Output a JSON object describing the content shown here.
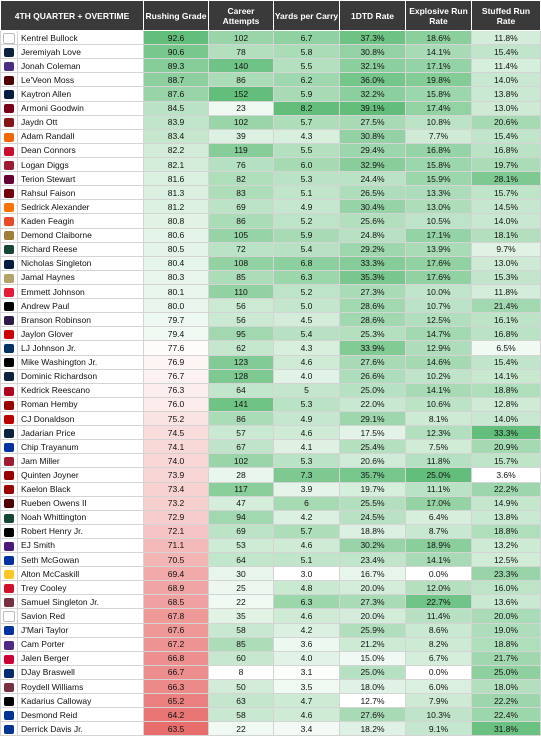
{
  "header": {
    "title": "4TH QUARTER + OVERTIME",
    "columns": [
      "Rushing Grade",
      "Career Attempts",
      "Yards per Carry",
      "1DTD Rate",
      "Explosive Run Rate",
      "Stuffed Run Rate"
    ]
  },
  "rows": [
    {
      "name": "Kentrel Bullock",
      "grade": "92.6",
      "att": "102",
      "ypc": "6.7",
      "tdr": "37.3%",
      "exp": "18.6%",
      "stuff": "11.8%",
      "logo": "#ffffff"
    },
    {
      "name": "Jeremiyah Love",
      "grade": "90.6",
      "att": "78",
      "ypc": "5.8",
      "tdr": "30.8%",
      "exp": "14.1%",
      "stuff": "15.4%",
      "logo": "#0c2340"
    },
    {
      "name": "Jonah Coleman",
      "grade": "89.3",
      "att": "140",
      "ypc": "5.5",
      "tdr": "32.1%",
      "exp": "17.1%",
      "stuff": "11.4%",
      "logo": "#4b2e83"
    },
    {
      "name": "Le'Veon Moss",
      "grade": "88.7",
      "att": "86",
      "ypc": "6.2",
      "tdr": "36.0%",
      "exp": "19.8%",
      "stuff": "14.0%",
      "logo": "#500000"
    },
    {
      "name": "Kaytron Allen",
      "grade": "87.6",
      "att": "152",
      "ypc": "5.9",
      "tdr": "32.2%",
      "exp": "15.8%",
      "stuff": "13.8%",
      "logo": "#041e42"
    },
    {
      "name": "Armoni Goodwin",
      "grade": "84.5",
      "att": "23",
      "ypc": "8.2",
      "tdr": "39.1%",
      "exp": "17.4%",
      "stuff": "13.0%",
      "logo": "#7a0019"
    },
    {
      "name": "Jaydn Ott",
      "grade": "83.9",
      "att": "102",
      "ypc": "5.7",
      "tdr": "27.5%",
      "exp": "10.8%",
      "stuff": "20.6%",
      "logo": "#841617"
    },
    {
      "name": "Adam Randall",
      "grade": "83.4",
      "att": "39",
      "ypc": "4.3",
      "tdr": "30.8%",
      "exp": "7.7%",
      "stuff": "15.4%",
      "logo": "#f56600"
    },
    {
      "name": "Dean Connors",
      "grade": "82.2",
      "att": "119",
      "ypc": "5.5",
      "tdr": "29.4%",
      "exp": "16.8%",
      "stuff": "16.8%",
      "logo": "#c8102e"
    },
    {
      "name": "Logan Diggs",
      "grade": "82.1",
      "att": "76",
      "ypc": "6.0",
      "tdr": "32.9%",
      "exp": "15.8%",
      "stuff": "19.7%",
      "logo": "#9e1b32"
    },
    {
      "name": "Terion Stewart",
      "grade": "81.6",
      "att": "82",
      "ypc": "5.3",
      "tdr": "24.4%",
      "exp": "15.9%",
      "stuff": "28.1%",
      "logo": "#630031"
    },
    {
      "name": "Rahsul Faison",
      "grade": "81.3",
      "att": "83",
      "ypc": "5.1",
      "tdr": "26.5%",
      "exp": "13.3%",
      "stuff": "15.7%",
      "logo": "#73000a"
    },
    {
      "name": "Sedrick Alexander",
      "grade": "81.2",
      "att": "69",
      "ypc": "4.9",
      "tdr": "30.4%",
      "exp": "13.0%",
      "stuff": "14.5%",
      "logo": "#ff7300"
    },
    {
      "name": "Kaden Feagin",
      "grade": "80.8",
      "att": "86",
      "ypc": "5.2",
      "tdr": "25.6%",
      "exp": "10.5%",
      "stuff": "14.0%",
      "logo": "#e84a27"
    },
    {
      "name": "Demond Claiborne",
      "grade": "80.6",
      "att": "105",
      "ypc": "5.9",
      "tdr": "24.8%",
      "exp": "17.1%",
      "stuff": "18.1%",
      "logo": "#9e7e38"
    },
    {
      "name": "Richard Reese",
      "grade": "80.5",
      "att": "72",
      "ypc": "5.4",
      "tdr": "29.2%",
      "exp": "13.9%",
      "stuff": "9.7%",
      "logo": "#154734"
    },
    {
      "name": "Nicholas Singleton",
      "grade": "80.4",
      "att": "108",
      "ypc": "6.8",
      "tdr": "33.3%",
      "exp": "17.6%",
      "stuff": "13.0%",
      "logo": "#041e42"
    },
    {
      "name": "Jamal Haynes",
      "grade": "80.3",
      "att": "85",
      "ypc": "6.3",
      "tdr": "35.3%",
      "exp": "17.6%",
      "stuff": "15.3%",
      "logo": "#b3a369"
    },
    {
      "name": "Emmett Johnson",
      "grade": "80.1",
      "att": "110",
      "ypc": "5.2",
      "tdr": "27.3%",
      "exp": "10.0%",
      "stuff": "11.8%",
      "logo": "#e41c38"
    },
    {
      "name": "Andrew Paul",
      "grade": "80.0",
      "att": "56",
      "ypc": "5.0",
      "tdr": "28.6%",
      "exp": "10.7%",
      "stuff": "21.4%",
      "logo": "#000000"
    },
    {
      "name": "Branson Robinson",
      "grade": "79.7",
      "att": "56",
      "ypc": "4.5",
      "tdr": "28.6%",
      "exp": "12.5%",
      "stuff": "16.1%",
      "logo": "#2e1a47"
    },
    {
      "name": "Jaylon Glover",
      "grade": "79.4",
      "att": "95",
      "ypc": "5.4",
      "tdr": "25.3%",
      "exp": "14.7%",
      "stuff": "16.8%",
      "logo": "#cc0000"
    },
    {
      "name": "LJ Johnson Jr.",
      "grade": "77.6",
      "att": "62",
      "ypc": "4.3",
      "tdr": "33.9%",
      "exp": "12.9%",
      "stuff": "6.5%",
      "logo": "#003262"
    },
    {
      "name": "Mike Washington Jr.",
      "grade": "76.9",
      "att": "123",
      "ypc": "4.6",
      "tdr": "27.6%",
      "exp": "14.6%",
      "stuff": "15.4%",
      "logo": "#000000"
    },
    {
      "name": "Dominic Richardson",
      "grade": "76.7",
      "att": "128",
      "ypc": "4.0",
      "tdr": "26.6%",
      "exp": "10.2%",
      "stuff": "14.1%",
      "logo": "#0c2340"
    },
    {
      "name": "Kedrick Reescano",
      "grade": "76.3",
      "att": "64",
      "ypc": "5",
      "tdr": "25.0%",
      "exp": "14.1%",
      "stuff": "18.8%",
      "logo": "#ab0520"
    },
    {
      "name": "Roman Hemby",
      "grade": "76.0",
      "att": "141",
      "ypc": "5.3",
      "tdr": "22.0%",
      "exp": "10.6%",
      "stuff": "12.8%",
      "logo": "#990000"
    },
    {
      "name": "CJ Donaldson",
      "grade": "75.2",
      "att": "86",
      "ypc": "4.9",
      "tdr": "29.1%",
      "exp": "8.1%",
      "stuff": "14.0%",
      "logo": "#bb0000"
    },
    {
      "name": "Jadarian Price",
      "grade": "74.5",
      "att": "57",
      "ypc": "4.6",
      "tdr": "17.5%",
      "exp": "12.3%",
      "stuff": "33.3%",
      "logo": "#0c2340"
    },
    {
      "name": "Chip Trayanum",
      "grade": "74.1",
      "att": "67",
      "ypc": "4.1",
      "tdr": "25.4%",
      "exp": "7.5%",
      "stuff": "20.9%",
      "logo": "#0033a0"
    },
    {
      "name": "Jam Miller",
      "grade": "74.0",
      "att": "102",
      "ypc": "5.3",
      "tdr": "20.6%",
      "exp": "11.8%",
      "stuff": "15.7%",
      "logo": "#9e1b32"
    },
    {
      "name": "Quinten Joyner",
      "grade": "73.9",
      "att": "28",
      "ypc": "7.3",
      "tdr": "35.7%",
      "exp": "25.0%",
      "stuff": "3.6%",
      "logo": "#990000"
    },
    {
      "name": "Kaelon Black",
      "grade": "73.4",
      "att": "117",
      "ypc": "3.9",
      "tdr": "19.7%",
      "exp": "11.1%",
      "stuff": "22.2%",
      "logo": "#990000"
    },
    {
      "name": "Rueben Owens II",
      "grade": "73.2",
      "att": "47",
      "ypc": "6",
      "tdr": "25.5%",
      "exp": "17.0%",
      "stuff": "14.9%",
      "logo": "#500000"
    },
    {
      "name": "Noah Whittington",
      "grade": "72.9",
      "att": "94",
      "ypc": "4.2",
      "tdr": "24.5%",
      "exp": "6.4%",
      "stuff": "13.8%",
      "logo": "#154733"
    },
    {
      "name": "Robert Henry Jr.",
      "grade": "72.1",
      "att": "69",
      "ypc": "5.7",
      "tdr": "18.8%",
      "exp": "8.7%",
      "stuff": "18.8%",
      "logo": "#000000"
    },
    {
      "name": "EJ Smith",
      "grade": "71.1",
      "att": "53",
      "ypc": "4.6",
      "tdr": "30.2%",
      "exp": "18.9%",
      "stuff": "13.2%",
      "logo": "#4d1979"
    },
    {
      "name": "Seth McGowan",
      "grade": "70.5",
      "att": "64",
      "ypc": "5.1",
      "tdr": "23.4%",
      "exp": "14.1%",
      "stuff": "12.5%",
      "logo": "#0033a0"
    },
    {
      "name": "Alton McCaskill",
      "grade": "69.4",
      "att": "30",
      "ypc": "3.0",
      "tdr": "16.7%",
      "exp": "0.0%",
      "stuff": "23.3%",
      "logo": "#ffc627"
    },
    {
      "name": "Trey Cooley",
      "grade": "68.9",
      "att": "25",
      "ypc": "4.8",
      "tdr": "20.0%",
      "exp": "12.0%",
      "stuff": "16.0%",
      "logo": "#ce1126"
    },
    {
      "name": "Samuel Singleton Jr.",
      "grade": "68.5",
      "att": "22",
      "ypc": "6.3",
      "tdr": "27.3%",
      "exp": "22.7%",
      "stuff": "13.6%",
      "logo": "#782f40"
    },
    {
      "name": "Savion Red",
      "grade": "67.8",
      "att": "35",
      "ypc": "4.6",
      "tdr": "20.0%",
      "exp": "11.4%",
      "stuff": "20.0%",
      "logo": "#ffffff"
    },
    {
      "name": "J'Mari Taylor",
      "grade": "67.6",
      "att": "58",
      "ypc": "4.2",
      "tdr": "25.9%",
      "exp": "8.6%",
      "stuff": "19.0%",
      "logo": "#0033a0"
    },
    {
      "name": "Cam Porter",
      "grade": "67.2",
      "att": "85",
      "ypc": "3.6",
      "tdr": "21.2%",
      "exp": "8.2%",
      "stuff": "18.8%",
      "logo": "#4e2a84"
    },
    {
      "name": "Jalen Berger",
      "grade": "66.8",
      "att": "60",
      "ypc": "4.0",
      "tdr": "15.0%",
      "exp": "6.7%",
      "stuff": "21.7%",
      "logo": "#cc0033"
    },
    {
      "name": "DJay Braswell",
      "grade": "66.7",
      "att": "8",
      "ypc": "3.1",
      "tdr": "25.0%",
      "exp": "0.0%",
      "stuff": "25.0%",
      "logo": "#002d72"
    },
    {
      "name": "Roydell Williams",
      "grade": "66.3",
      "att": "50",
      "ypc": "3.5",
      "tdr": "18.0%",
      "exp": "6.0%",
      "stuff": "18.0%",
      "logo": "#782f40"
    },
    {
      "name": "Kadarius Calloway",
      "grade": "65.2",
      "att": "63",
      "ypc": "4.7",
      "tdr": "12.7%",
      "exp": "7.9%",
      "stuff": "22.2%",
      "logo": "#000000"
    },
    {
      "name": "Desmond Reid",
      "grade": "64.2",
      "att": "58",
      "ypc": "4.6",
      "tdr": "27.6%",
      "exp": "10.3%",
      "stuff": "22.4%",
      "logo": "#003594"
    },
    {
      "name": "Derrick Davis Jr.",
      "grade": "63.5",
      "att": "22",
      "ypc": "3.4",
      "tdr": "18.2%",
      "exp": "9.1%",
      "stuff": "31.8%",
      "logo": "#003594"
    }
  ]
}
